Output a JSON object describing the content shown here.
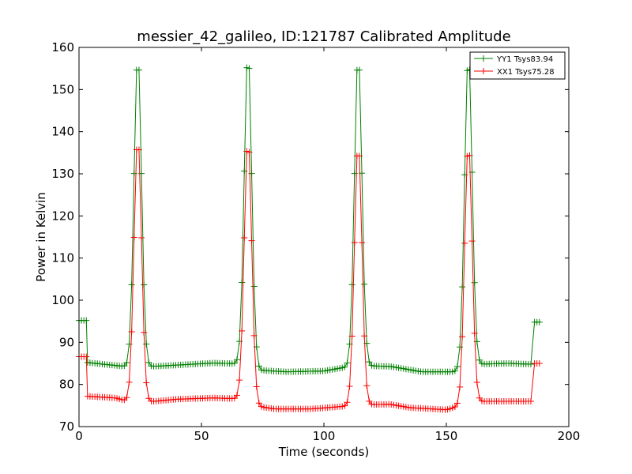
{
  "chart_data": {
    "type": "line",
    "title": "messier_42_galileo, ID:121787 Calibrated Amplitude",
    "xlabel": "Time (seconds)",
    "ylabel": "Power in Kelvin",
    "xlim": [
      0,
      200
    ],
    "ylim": [
      70,
      160
    ],
    "xticks": [
      0,
      50,
      100,
      150,
      200
    ],
    "yticks": [
      70,
      80,
      90,
      100,
      110,
      120,
      130,
      140,
      150,
      160
    ],
    "grid": false,
    "legend_position": "top-right",
    "marker": "plus",
    "sample_step": 1,
    "series": [
      {
        "name": "YY1 Tsys83.94",
        "color": "#008000",
        "baseline_knots": [
          [
            3.5,
            85.2
          ],
          [
            20,
            84.2
          ],
          [
            27,
            84.2
          ],
          [
            40,
            84.6
          ],
          [
            55,
            85.1
          ],
          [
            65,
            84.9
          ],
          [
            73,
            83.4
          ],
          [
            85,
            83.0
          ],
          [
            100,
            83.2
          ],
          [
            110,
            84.2
          ],
          [
            118,
            84.4
          ],
          [
            127,
            84.3
          ],
          [
            140,
            83.0
          ],
          [
            153,
            83.0
          ],
          [
            162,
            84.8
          ],
          [
            175,
            85.0
          ],
          [
            185,
            84.8
          ]
        ],
        "peaks": [
          {
            "center": 24,
            "height": 158.5,
            "width": 1.2
          },
          {
            "center": 69,
            "height": 159,
            "width": 1.2
          },
          {
            "center": 114,
            "height": 158.5,
            "width": 1.2
          },
          {
            "center": 159,
            "height": 158.5,
            "width": 1.2
          }
        ],
        "start_segment": {
          "x_from": 0,
          "x_to": 3,
          "value": 95.2
        },
        "end_segment": {
          "x_from": 186,
          "x_to": 188,
          "value": 94.8
        }
      },
      {
        "name": "XX1 Tsys75.28",
        "color": "#ff0000",
        "baseline_knots": [
          [
            3.5,
            77.2
          ],
          [
            15,
            76.8
          ],
          [
            20,
            76.0
          ],
          [
            27,
            75.8
          ],
          [
            40,
            76.5
          ],
          [
            55,
            76.8
          ],
          [
            65,
            76.6
          ],
          [
            73,
            74.8
          ],
          [
            80,
            74.2
          ],
          [
            95,
            74.2
          ],
          [
            108,
            74.8
          ],
          [
            112,
            75.2
          ],
          [
            118,
            75.2
          ],
          [
            127,
            75.3
          ],
          [
            135,
            74.5
          ],
          [
            150,
            74.0
          ],
          [
            153,
            74.5
          ],
          [
            162,
            76.0
          ],
          [
            175,
            76.0
          ],
          [
            185,
            76.0
          ]
        ],
        "peaks": [
          {
            "center": 24,
            "height": 139,
            "width": 1.2
          },
          {
            "center": 69,
            "height": 138.5,
            "width": 1.2
          },
          {
            "center": 114,
            "height": 137.5,
            "width": 1.2
          },
          {
            "center": 159,
            "height": 137.5,
            "width": 1.2
          }
        ],
        "start_segment": {
          "x_from": 0,
          "x_to": 3,
          "value": 86.6
        },
        "end_segment": {
          "x_from": 186,
          "x_to": 188,
          "value": 85.0
        }
      }
    ]
  }
}
